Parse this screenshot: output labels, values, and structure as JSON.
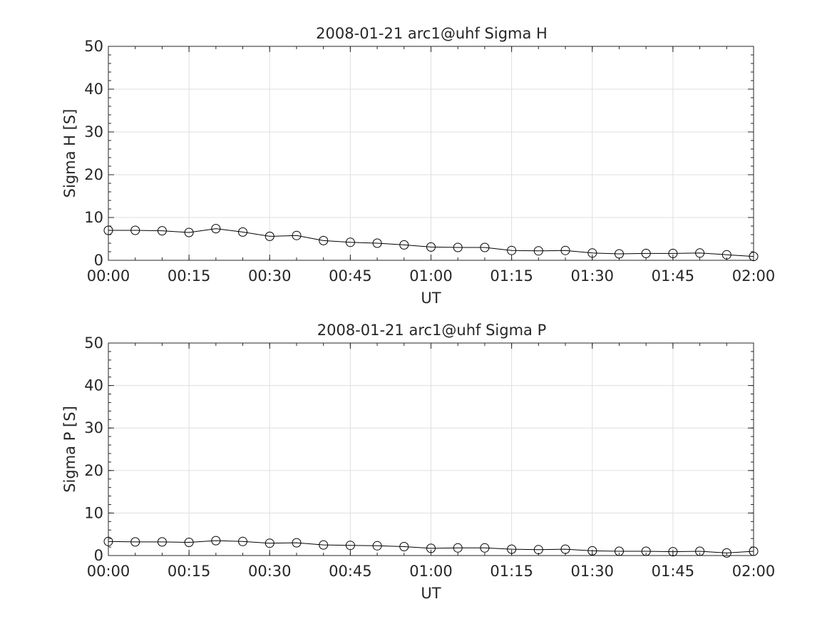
{
  "chart_data": [
    {
      "type": "line",
      "title": "2008-01-21  arc1@uhf Sigma H",
      "xlabel": "UT",
      "ylabel": "Sigma H [S]",
      "xlim": [
        "00:00",
        "02:00"
      ],
      "ylim": [
        0,
        50
      ],
      "x_ticks": [
        "00:00",
        "00:15",
        "00:30",
        "00:45",
        "01:00",
        "01:15",
        "01:30",
        "01:45",
        "02:00"
      ],
      "y_ticks": [
        "0",
        "10",
        "20",
        "30",
        "40",
        "50"
      ],
      "grid": true,
      "marker": "circle",
      "color": "#000000",
      "x": [
        "00:00",
        "00:05",
        "00:10",
        "00:15",
        "00:20",
        "00:25",
        "00:30",
        "00:35",
        "00:40",
        "00:45",
        "00:50",
        "00:55",
        "01:00",
        "01:05",
        "01:10",
        "01:15",
        "01:20",
        "01:25",
        "01:30",
        "01:35",
        "01:40",
        "01:45",
        "01:50",
        "01:55",
        "02:00"
      ],
      "series": [
        {
          "values": [
            7.0,
            7.0,
            6.9,
            6.5,
            7.4,
            6.6,
            5.6,
            5.8,
            4.6,
            4.2,
            4.0,
            3.6,
            3.1,
            3.0,
            3.0,
            2.3,
            2.2,
            2.3,
            1.7,
            1.5,
            1.6,
            1.6,
            1.7,
            1.3,
            0.9
          ]
        }
      ]
    },
    {
      "type": "line",
      "title": "2008-01-21  arc1@uhf Sigma P",
      "xlabel": "UT",
      "ylabel": "Sigma P [S]",
      "xlim": [
        "00:00",
        "02:00"
      ],
      "ylim": [
        0,
        50
      ],
      "x_ticks": [
        "00:00",
        "00:15",
        "00:30",
        "00:45",
        "01:00",
        "01:15",
        "01:30",
        "01:45",
        "02:00"
      ],
      "y_ticks": [
        "0",
        "10",
        "20",
        "30",
        "40",
        "50"
      ],
      "grid": true,
      "marker": "circle",
      "color": "#000000",
      "x": [
        "00:00",
        "00:05",
        "00:10",
        "00:15",
        "00:20",
        "00:25",
        "00:30",
        "00:35",
        "00:40",
        "00:45",
        "00:50",
        "00:55",
        "01:00",
        "01:05",
        "01:10",
        "01:15",
        "01:20",
        "01:25",
        "01:30",
        "01:35",
        "01:40",
        "01:45",
        "01:50",
        "01:55",
        "02:00"
      ],
      "series": [
        {
          "values": [
            3.3,
            3.2,
            3.2,
            3.1,
            3.5,
            3.3,
            2.9,
            3.0,
            2.5,
            2.4,
            2.3,
            2.1,
            1.7,
            1.8,
            1.8,
            1.5,
            1.4,
            1.5,
            1.1,
            1.0,
            1.0,
            0.9,
            1.0,
            0.6,
            1.0
          ]
        }
      ]
    }
  ]
}
